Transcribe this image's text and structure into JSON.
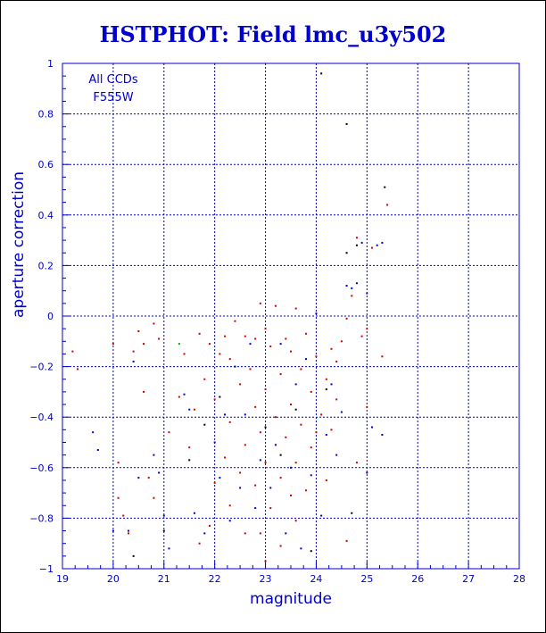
{
  "title": "HSTPHOT: Field lmc_u3y502",
  "chart_data": {
    "type": "scatter",
    "title": "HSTPHOT: Field lmc_u3y502",
    "xlabel": "magnitude",
    "ylabel": "aperture correction",
    "xlim": [
      19,
      28
    ],
    "ylim": [
      -1,
      1
    ],
    "x_ticks": [
      "19",
      "20",
      "21",
      "22",
      "23",
      "24",
      "25",
      "26",
      "27",
      "28"
    ],
    "y_ticks": [
      "−1",
      "−0.8",
      "−0.6",
      "−0.4",
      "−0.2",
      "0",
      "0.2",
      "0.4",
      "0.6",
      "0.8",
      "1"
    ],
    "grid": true,
    "annotations": [
      "All CCDs",
      "F555W"
    ],
    "colors": {
      "title": "#0000cc",
      "axes": "#0000cc",
      "grid": "#0000cc",
      "frame": "#000000"
    },
    "series": [
      {
        "color": "#d00000",
        "points": [
          [
            19.2,
            -0.14
          ],
          [
            19.3,
            -0.21
          ],
          [
            20.0,
            -0.11
          ],
          [
            20.1,
            -0.72
          ],
          [
            20.2,
            -0.79
          ],
          [
            20.3,
            -0.86
          ],
          [
            20.4,
            -0.14
          ],
          [
            20.5,
            -0.06
          ],
          [
            20.6,
            -0.11
          ],
          [
            20.6,
            -0.3
          ],
          [
            20.8,
            -0.03
          ],
          [
            20.8,
            -0.72
          ],
          [
            20.9,
            -0.09
          ],
          [
            21.3,
            -0.32
          ],
          [
            21.4,
            -0.15
          ],
          [
            21.5,
            -0.52
          ],
          [
            21.6,
            -0.37
          ],
          [
            21.7,
            -0.07
          ],
          [
            21.7,
            -0.9
          ],
          [
            21.8,
            -0.25
          ],
          [
            21.9,
            -0.11
          ],
          [
            22.0,
            -0.33
          ],
          [
            22.1,
            -0.15
          ],
          [
            22.2,
            -0.08
          ],
          [
            22.2,
            -0.56
          ],
          [
            22.3,
            -0.17
          ],
          [
            22.3,
            -0.42
          ],
          [
            22.4,
            -0.02
          ],
          [
            22.5,
            -0.27
          ],
          [
            22.5,
            -0.62
          ],
          [
            22.6,
            -0.08
          ],
          [
            22.6,
            -0.51
          ],
          [
            22.6,
            -0.86
          ],
          [
            22.7,
            -0.21
          ],
          [
            22.8,
            -0.09
          ],
          [
            22.8,
            -0.36
          ],
          [
            22.8,
            -0.67
          ],
          [
            22.9,
            0.05
          ],
          [
            22.9,
            -0.46
          ],
          [
            22.9,
            -0.86
          ],
          [
            23.0,
            -0.05
          ],
          [
            23.0,
            -0.29
          ],
          [
            23.0,
            -0.58
          ],
          [
            23.1,
            -0.12
          ],
          [
            23.1,
            -0.76
          ],
          [
            23.2,
            0.04
          ],
          [
            23.2,
            -0.4
          ],
          [
            23.3,
            -0.23
          ],
          [
            23.3,
            -0.64
          ],
          [
            23.3,
            -0.91
          ],
          [
            23.4,
            -0.09
          ],
          [
            23.4,
            -0.48
          ],
          [
            23.5,
            -0.14
          ],
          [
            23.5,
            -0.35
          ],
          [
            23.6,
            0.03
          ],
          [
            23.6,
            -0.58
          ],
          [
            23.6,
            -0.81
          ],
          [
            23.7,
            -0.21
          ],
          [
            23.7,
            -0.43
          ],
          [
            23.8,
            -0.07
          ],
          [
            23.8,
            -0.69
          ],
          [
            23.9,
            -0.3
          ],
          [
            23.9,
            -0.52
          ],
          [
            24.0,
            -0.16
          ],
          [
            24.0,
            -0.46
          ],
          [
            24.1,
            -0.39
          ],
          [
            24.2,
            -0.65
          ],
          [
            24.2,
            -0.25
          ],
          [
            24.3,
            -0.45
          ],
          [
            24.4,
            -0.18
          ],
          [
            24.4,
            -0.33
          ],
          [
            24.5,
            -0.1
          ],
          [
            24.6,
            -0.01
          ],
          [
            24.7,
            0.08
          ],
          [
            24.8,
            0.31
          ],
          [
            24.8,
            -0.58
          ],
          [
            24.9,
            -0.08
          ],
          [
            25.0,
            -0.36
          ],
          [
            25.0,
            -0.05
          ],
          [
            25.1,
            0.27
          ],
          [
            25.3,
            -0.16
          ],
          [
            25.4,
            0.44
          ],
          [
            20.7,
            -0.64
          ],
          [
            21.9,
            -0.83
          ],
          [
            22.3,
            -0.75
          ],
          [
            23.0,
            -0.97
          ],
          [
            24.6,
            -0.89
          ],
          [
            20.1,
            -0.58
          ],
          [
            21.1,
            -0.46
          ],
          [
            22.0,
            -0.66
          ],
          [
            23.5,
            -0.71
          ],
          [
            24.3,
            -0.13
          ]
        ]
      },
      {
        "color": "#0000cc",
        "points": [
          [
            19.6,
            -0.46
          ],
          [
            19.7,
            -0.53
          ],
          [
            20.0,
            -0.85
          ],
          [
            20.3,
            -0.85
          ],
          [
            20.4,
            -0.18
          ],
          [
            20.5,
            -0.64
          ],
          [
            20.9,
            -0.62
          ],
          [
            21.0,
            -0.79
          ],
          [
            21.1,
            -0.92
          ],
          [
            21.4,
            -0.31
          ],
          [
            21.5,
            -0.37
          ],
          [
            21.6,
            -0.78
          ],
          [
            21.8,
            -0.86
          ],
          [
            22.0,
            -0.5
          ],
          [
            22.1,
            -0.64
          ],
          [
            22.2,
            -0.39
          ],
          [
            22.3,
            -0.81
          ],
          [
            22.5,
            -0.68
          ],
          [
            22.6,
            -0.39
          ],
          [
            22.8,
            -0.76
          ],
          [
            22.9,
            -0.57
          ],
          [
            23.1,
            -0.68
          ],
          [
            23.2,
            -0.51
          ],
          [
            23.3,
            -0.11
          ],
          [
            23.4,
            -0.86
          ],
          [
            23.5,
            -0.6
          ],
          [
            23.6,
            -0.27
          ],
          [
            23.7,
            -0.92
          ],
          [
            23.8,
            -0.17
          ],
          [
            23.9,
            -0.63
          ],
          [
            24.0,
            0.01
          ],
          [
            24.1,
            -0.79
          ],
          [
            24.2,
            -0.47
          ],
          [
            24.3,
            -0.27
          ],
          [
            24.5,
            -0.38
          ],
          [
            24.6,
            0.12
          ],
          [
            24.7,
            0.11
          ],
          [
            24.8,
            0.13
          ],
          [
            24.9,
            0.29
          ],
          [
            25.0,
            0.09
          ],
          [
            25.1,
            -0.44
          ],
          [
            25.3,
            0.29
          ],
          [
            25.2,
            0.28
          ],
          [
            25.3,
            -0.47
          ],
          [
            20.8,
            -0.55
          ],
          [
            22.7,
            -0.11
          ],
          [
            24.4,
            -0.55
          ],
          [
            25.0,
            -0.62
          ]
        ]
      },
      {
        "color": "#000000",
        "points": [
          [
            24.1,
            0.96
          ],
          [
            24.6,
            0.76
          ],
          [
            25.35,
            0.51
          ],
          [
            24.8,
            0.28
          ],
          [
            24.6,
            0.25
          ],
          [
            20.4,
            -0.95
          ],
          [
            21.0,
            -0.85
          ],
          [
            24.7,
            -0.78
          ],
          [
            23.9,
            -0.93
          ],
          [
            21.5,
            -0.57
          ],
          [
            22.4,
            -0.2
          ],
          [
            23.0,
            -0.44
          ],
          [
            23.3,
            -0.55
          ],
          [
            23.6,
            -0.37
          ],
          [
            22.1,
            -0.32
          ],
          [
            24.2,
            -0.29
          ],
          [
            21.8,
            -0.43
          ]
        ]
      },
      {
        "color": "#00aa00",
        "points": [
          [
            21.3,
            -0.11
          ]
        ]
      }
    ]
  }
}
